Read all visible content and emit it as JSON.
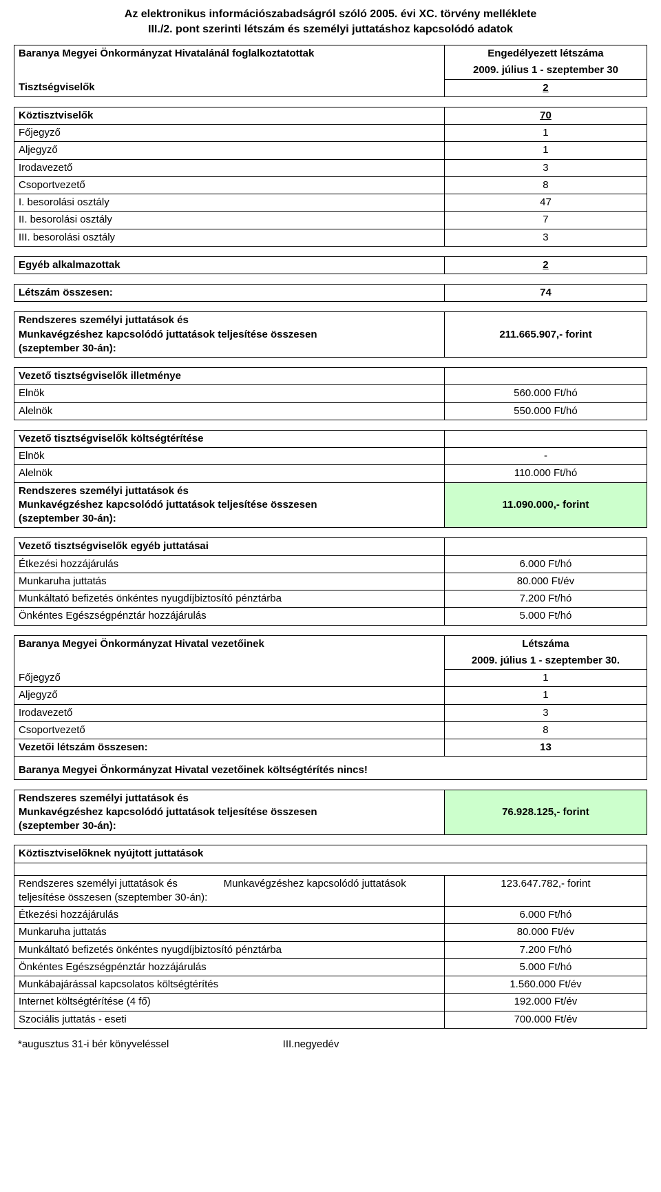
{
  "title": {
    "line1": "Az elektronikus információszabadságról szóló 2005. évi XC. törvény melléklete",
    "line2": "III./2. pont szerinti létszám és személyi juttatáshoz kapcsolódó adatok"
  },
  "colors": {
    "border": "#000000",
    "background": "#ffffff",
    "highlight": "#ccffcc"
  },
  "s1": {
    "header": "Baranya Megyei Önkormányzat Hivatalánál foglalkoztatottak",
    "col_header1": "Engedélyezett létszáma",
    "col_header2": "2009. július 1 - szeptember 30",
    "row_tiszt": {
      "label": "Tisztségviselők",
      "val": "2",
      "underline": true
    },
    "rows_koz": [
      {
        "label": "Köztisztviselők",
        "val": "70",
        "bold": true,
        "underline": true
      },
      {
        "label": "Főjegyző",
        "val": "1"
      },
      {
        "label": "Aljegyző",
        "val": "1"
      },
      {
        "label": "Irodavezető",
        "val": "3"
      },
      {
        "label": "Csoportvezető",
        "val": "8"
      },
      {
        "label": "I. besorolási osztály",
        "val": "47"
      },
      {
        "label": "II. besorolási osztály",
        "val": "7"
      },
      {
        "label": "III. besorolási osztály",
        "val": "3"
      }
    ],
    "row_egyeb": {
      "label": "Egyéb alkalmazottak",
      "val": "2",
      "underline": true
    },
    "row_total": {
      "label": "Létszám összesen:",
      "val": "74",
      "bold": true
    },
    "rendszeres": {
      "l1": "Rendszeres személyi juttatások és",
      "l2": "Munkavégzéshez kapcsolódó juttatások teljesítése összesen",
      "l3": "(szeptember 30-án):",
      "val": "211.665.907,- forint"
    }
  },
  "s2": {
    "h1": "Vezető tisztségviselők illetménye",
    "r1": {
      "label": "Elnök",
      "val": "560.000 Ft/hó"
    },
    "r2": {
      "label": "Alelnök",
      "val": "550.000 Ft/hó"
    }
  },
  "s3": {
    "h1": "Vezető tisztségviselők költségtérítése",
    "r1": {
      "label": "Elnök",
      "val": "-"
    },
    "r2": {
      "label": "Alelnök",
      "val": "110.000 Ft/hó"
    },
    "rendszeres": {
      "l1": "Rendszeres személyi juttatások és",
      "l2": "Munkavégzéshez kapcsolódó juttatások teljesítése összesen",
      "l3": "(szeptember 30-án):",
      "val": "11.090.000,- forint"
    }
  },
  "s4": {
    "h1": "Vezető tisztségviselők egyéb juttatásai",
    "rows": [
      {
        "label": "Étkezési hozzájárulás",
        "val": "6.000 Ft/hó"
      },
      {
        "label": "Munkaruha juttatás",
        "val": "80.000 Ft/év"
      },
      {
        "label": "Munkáltató befizetés önkéntes nyugdíjbiztosító pénztárba",
        "val": "7.200 Ft/hó"
      },
      {
        "label": "Önkéntes Egészségpénztár hozzájárulás",
        "val": "5.000 Ft/hó"
      }
    ]
  },
  "s5": {
    "header": "Baranya Megyei Önkormányzat Hivatal vezetőinek",
    "col_header1": "Létszáma",
    "col_header2": "2009. július 1 - szeptember 30.",
    "rows": [
      {
        "label": "Főjegyző",
        "val": "1"
      },
      {
        "label": "Aljegyző",
        "val": "1"
      },
      {
        "label": "Irodavezető",
        "val": "3"
      },
      {
        "label": "Csoportvezető",
        "val": "8"
      },
      {
        "label": "Vezetői létszám összesen:",
        "val": "13",
        "bold": true
      }
    ],
    "note": "Baranya Megyei Önkormányzat Hivatal vezetőinek költségtérítés nincs!",
    "rendszeres": {
      "l1": "Rendszeres személyi juttatások és",
      "l2": "Munkavégzéshez kapcsolódó juttatások teljesítése összesen",
      "l3": "(szeptember 30-án):",
      "val": "76.928.125,- forint"
    }
  },
  "s6": {
    "h1": "Köztisztviselőknek nyújtott juttatások",
    "rendszeres_label": "Rendszeres személyi juttatások és                Munkavégzéshez kapcsolódó juttatások teljesítése összesen (szeptember 30-án):",
    "rendszeres_val": "123.647.782,- forint",
    "rows": [
      {
        "label": "Étkezési hozzájárulás",
        "val": "6.000 Ft/hó"
      },
      {
        "label": "Munkaruha juttatás",
        "val": "80.000 Ft/év"
      },
      {
        "label": "Munkáltató befizetés önkéntes nyugdíjbiztosító pénztárba",
        "val": "7.200 Ft/hó"
      },
      {
        "label": "Önkéntes Egészségpénztár hozzájárulás",
        "val": "5.000 Ft/hó"
      },
      {
        "label": "Munkábajárással kapcsolatos költségtérítés",
        "val": "1.560.000 Ft/év"
      },
      {
        "label": "Internet költségtérítése (4 fő)",
        "val": "192.000 Ft/év"
      },
      {
        "label": "Szociális juttatás - eseti",
        "val": "700.000 Ft/év"
      }
    ],
    "footnote": "*augusztus 31-i bér könyveléssel",
    "footer_center": "III.negyedév"
  }
}
